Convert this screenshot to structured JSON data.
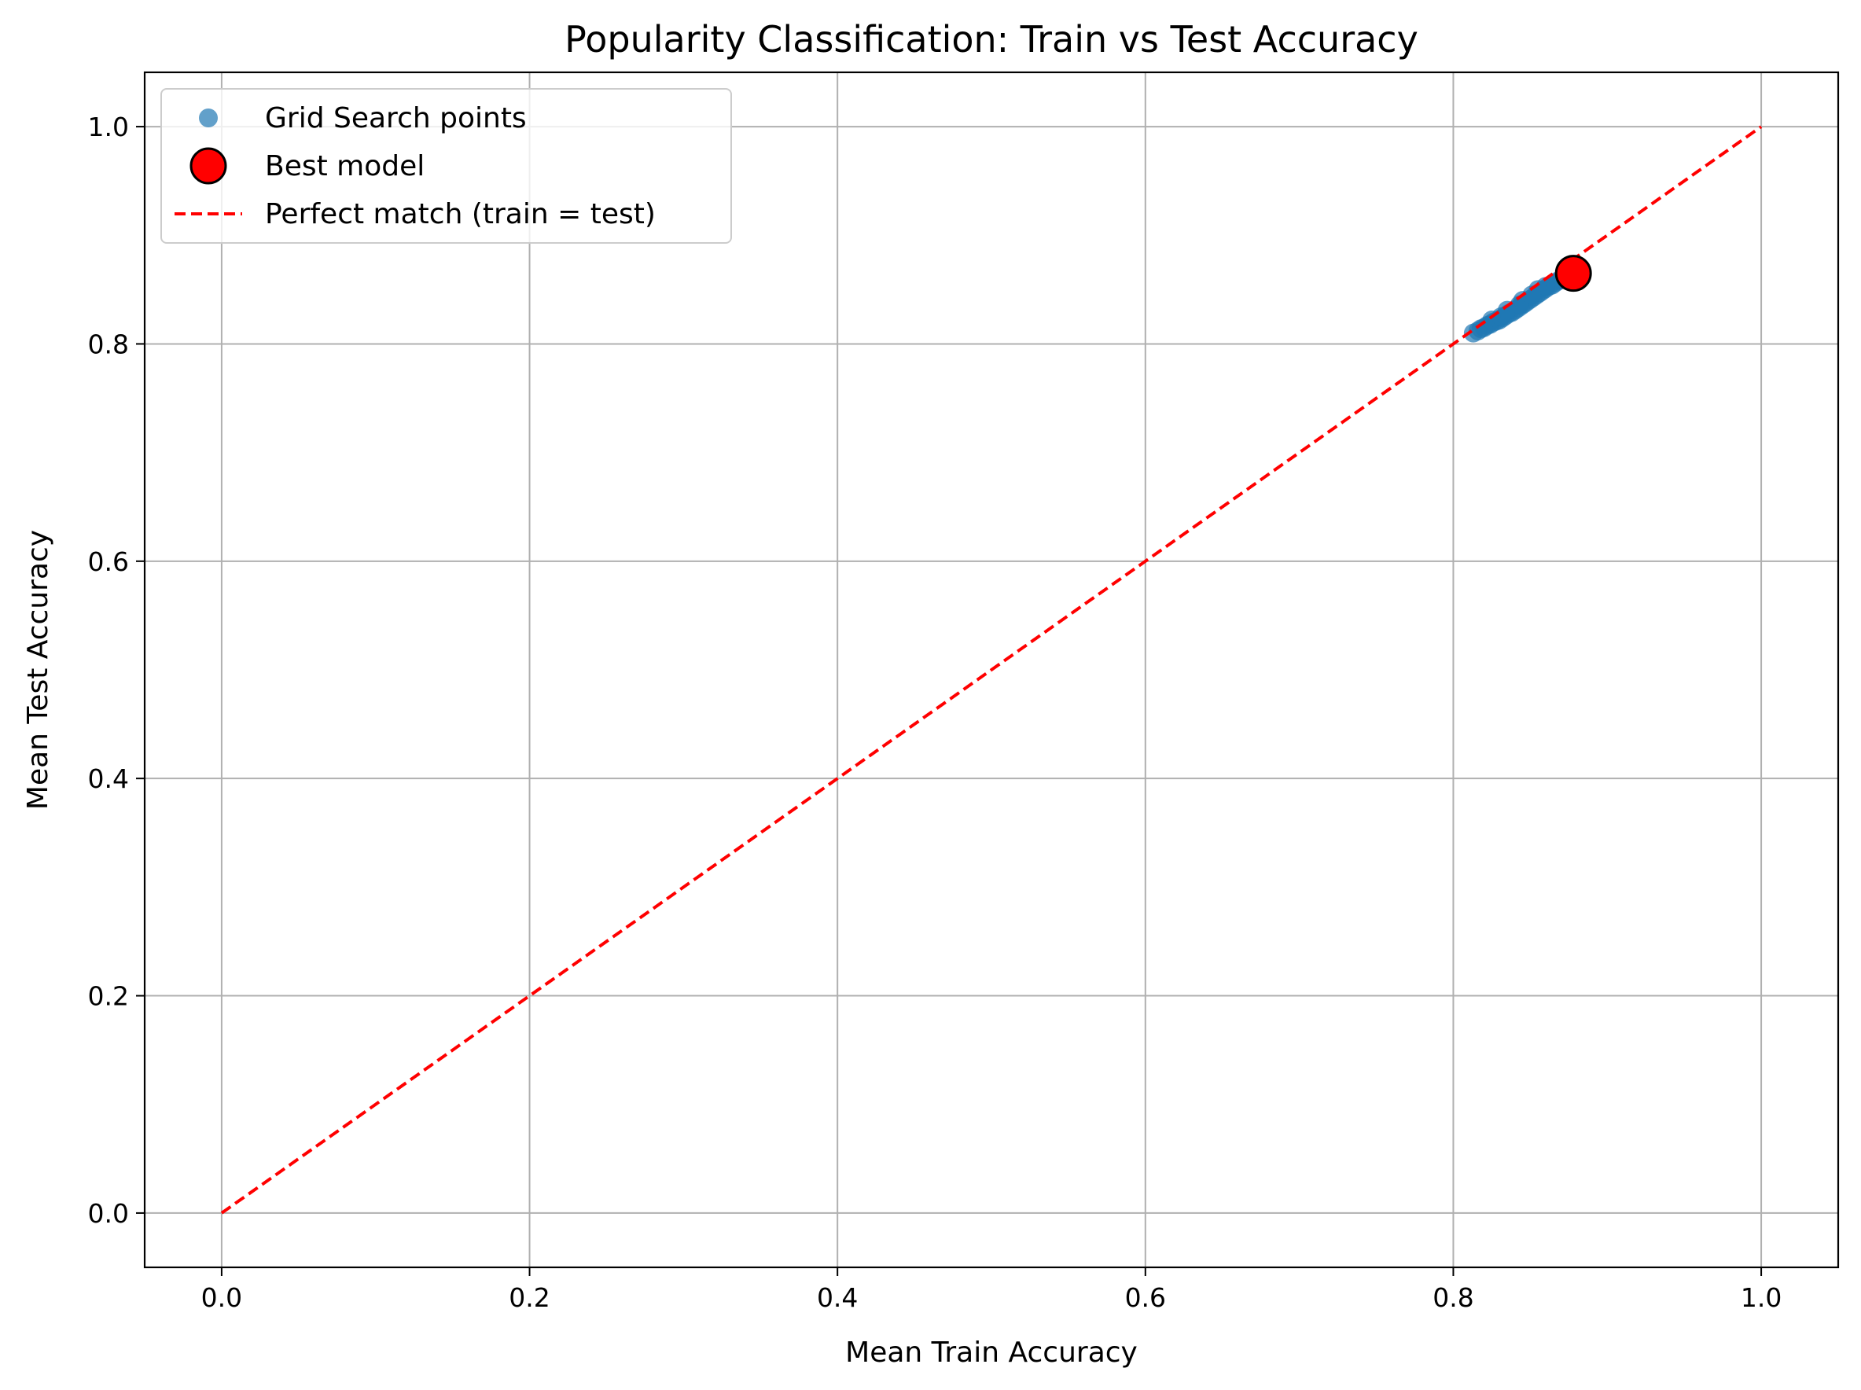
{
  "chart_data": {
    "type": "scatter",
    "title": "Popularity Classification: Train vs Test Accuracy",
    "xlabel": "Mean Train Accuracy",
    "ylabel": "Mean Test Accuracy",
    "xlim": [
      -0.05,
      1.05
    ],
    "ylim": [
      -0.05,
      1.05
    ],
    "xticks": [
      0.0,
      0.2,
      0.4,
      0.6,
      0.8,
      1.0
    ],
    "yticks": [
      0.0,
      0.2,
      0.4,
      0.6,
      0.8,
      1.0
    ],
    "xtick_labels": [
      "0.0",
      "0.2",
      "0.4",
      "0.6",
      "0.8",
      "1.0"
    ],
    "ytick_labels": [
      "0.0",
      "0.2",
      "0.4",
      "0.6",
      "0.8",
      "1.0"
    ],
    "grid": true,
    "legend_position": "upper-left",
    "series": [
      {
        "name": "Grid Search points",
        "type": "scatter",
        "color": "#1f77b4",
        "points": [
          [
            0.813,
            0.81
          ],
          [
            0.816,
            0.812
          ],
          [
            0.818,
            0.814
          ],
          [
            0.82,
            0.815
          ],
          [
            0.822,
            0.817
          ],
          [
            0.824,
            0.818
          ],
          [
            0.826,
            0.82
          ],
          [
            0.828,
            0.821
          ],
          [
            0.83,
            0.822
          ],
          [
            0.832,
            0.824
          ],
          [
            0.834,
            0.826
          ],
          [
            0.836,
            0.828
          ],
          [
            0.838,
            0.829
          ],
          [
            0.84,
            0.831
          ],
          [
            0.842,
            0.833
          ],
          [
            0.844,
            0.835
          ],
          [
            0.846,
            0.837
          ],
          [
            0.848,
            0.839
          ],
          [
            0.85,
            0.841
          ],
          [
            0.852,
            0.843
          ],
          [
            0.854,
            0.845
          ],
          [
            0.856,
            0.847
          ],
          [
            0.858,
            0.849
          ],
          [
            0.86,
            0.851
          ],
          [
            0.862,
            0.853
          ],
          [
            0.864,
            0.854
          ],
          [
            0.866,
            0.856
          ],
          [
            0.868,
            0.858
          ],
          [
            0.87,
            0.859
          ],
          [
            0.872,
            0.861
          ],
          [
            0.874,
            0.862
          ],
          [
            0.876,
            0.864
          ],
          [
            0.825,
            0.822
          ],
          [
            0.835,
            0.831
          ],
          [
            0.845,
            0.84
          ],
          [
            0.855,
            0.85
          ],
          [
            0.831,
            0.825
          ],
          [
            0.843,
            0.836
          ],
          [
            0.851,
            0.845
          ],
          [
            0.86,
            0.853
          ]
        ]
      },
      {
        "name": "Best model",
        "type": "scatter",
        "color": "#ff0000",
        "edge_color": "#000000",
        "points": [
          [
            0.878,
            0.865
          ]
        ]
      },
      {
        "name": "Perfect match (train = test)",
        "type": "line",
        "color": "#ff0000",
        "style": "dashed",
        "points": [
          [
            0.0,
            0.0
          ],
          [
            1.0,
            1.0
          ]
        ]
      }
    ]
  }
}
